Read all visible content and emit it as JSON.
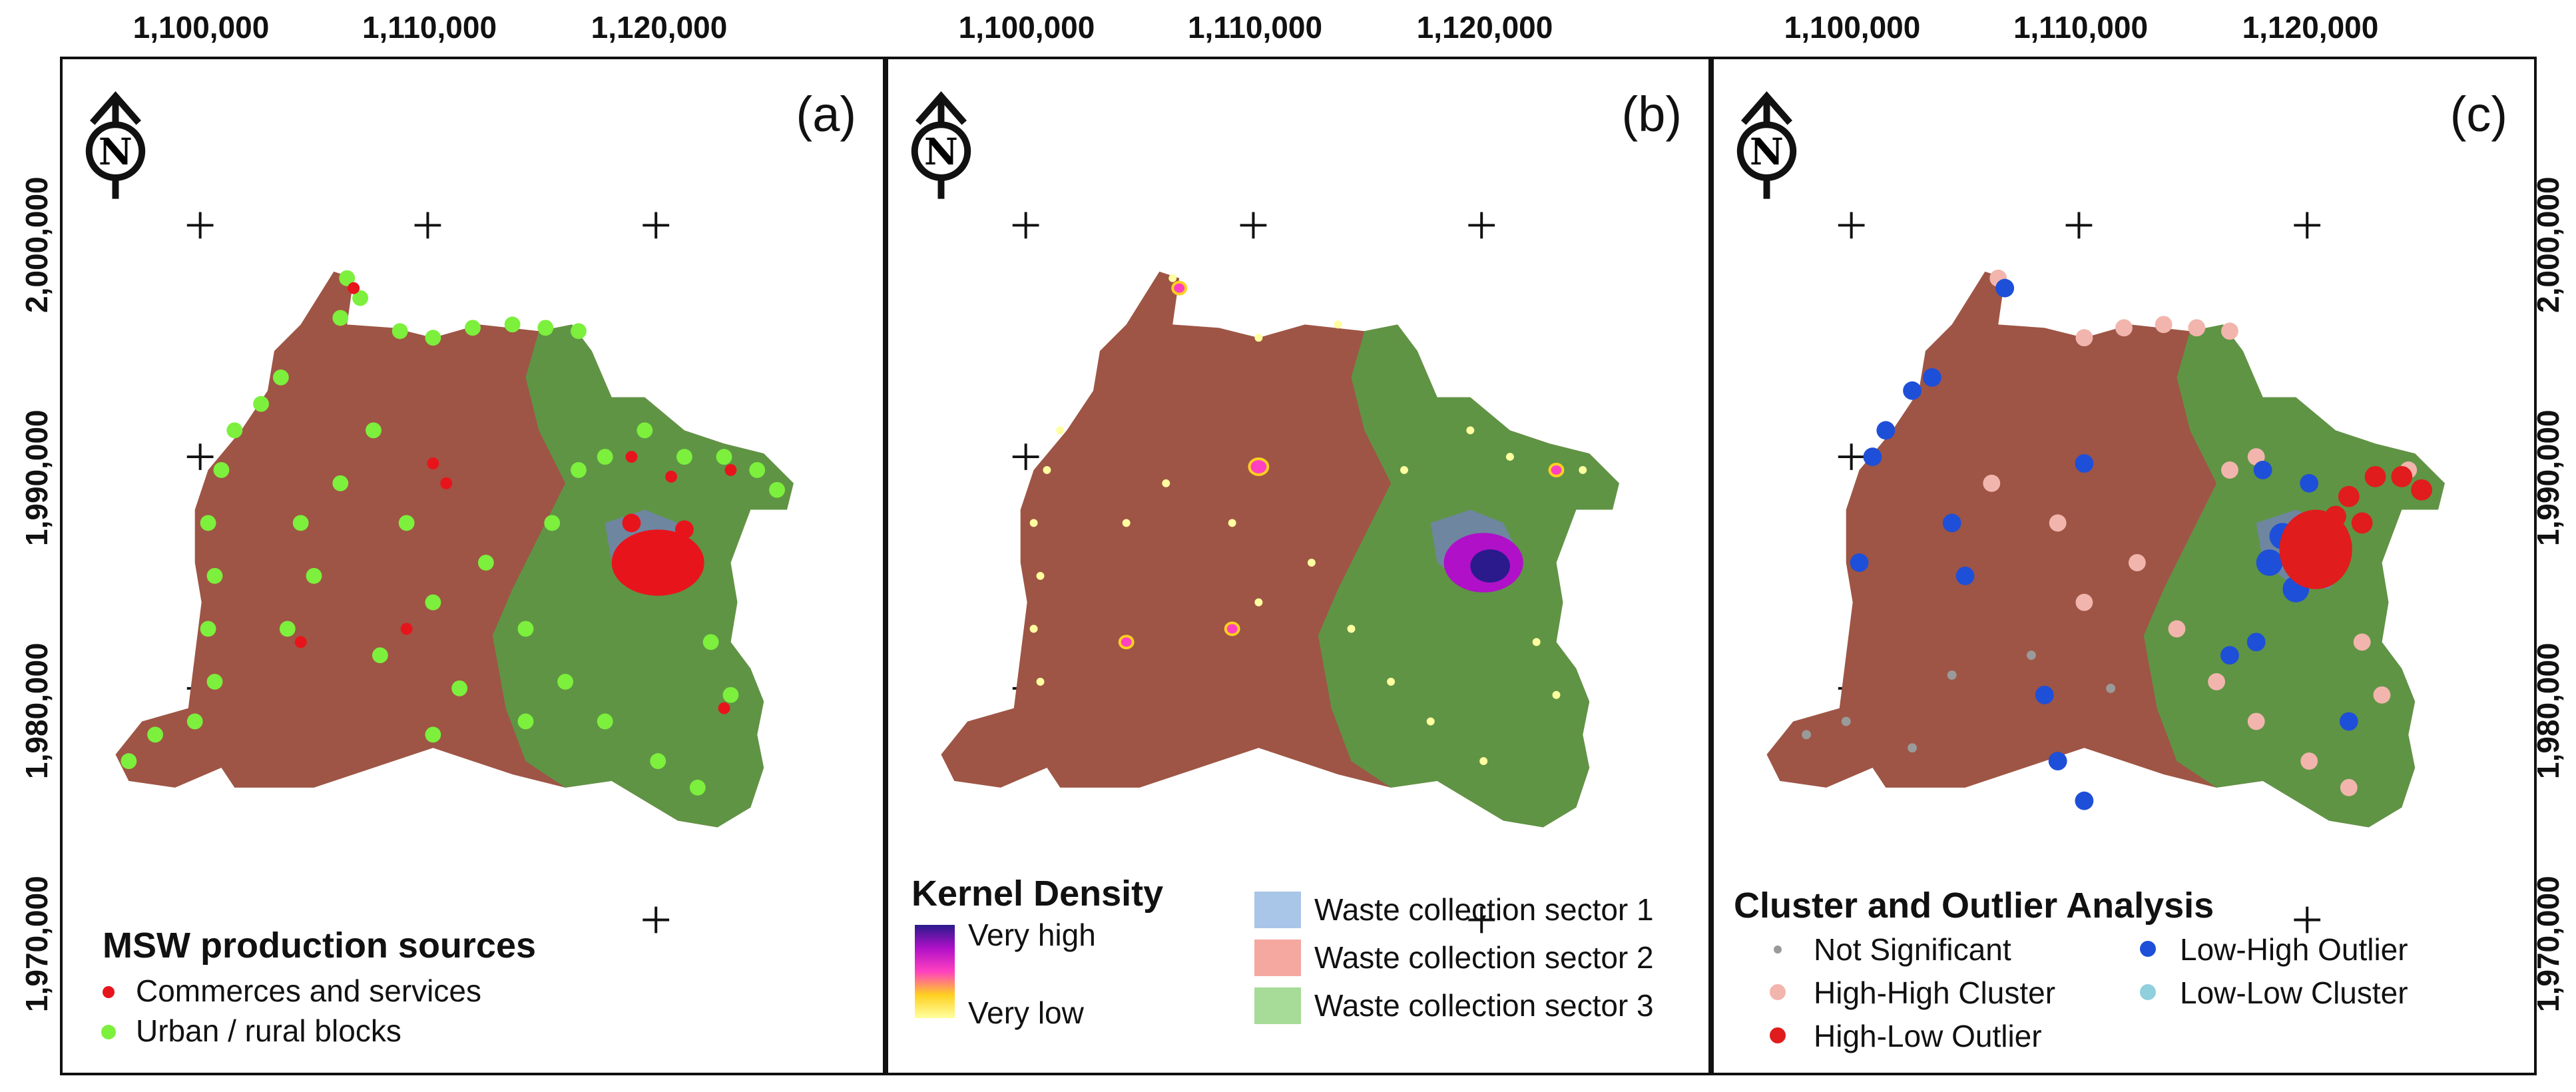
{
  "axes": {
    "x_ticks": [
      "1,100,000",
      "1,110,000",
      "1,120,000"
    ],
    "y_ticks": [
      "2,000,000",
      "1,990,000",
      "1,980,000",
      "1,970,000"
    ]
  },
  "north_arrow": {
    "letter": "N"
  },
  "panels": [
    {
      "label": "(a)",
      "legend": {
        "title": "MSW production sources",
        "items": [
          {
            "label": "Commerces and services",
            "color": "#e8141b"
          },
          {
            "label": "Urban / rural blocks",
            "color": "#7cf03c"
          }
        ]
      }
    },
    {
      "label": "(b)",
      "legend": {
        "title": "Kernel Density",
        "high": "Very high",
        "low": "Very low",
        "ramp": [
          "#2a1a8c",
          "#b010c8",
          "#ff40c0",
          "#ffd020",
          "#ffffa0"
        ],
        "sectors": [
          {
            "label": "Waste collection sector 1",
            "color": "#a9c6e8"
          },
          {
            "label": "Waste collection sector 2",
            "color": "#f5a8a0"
          },
          {
            "label": "Waste collection sector 3",
            "color": "#a6dc98"
          }
        ]
      }
    },
    {
      "label": "(c)",
      "legend": {
        "title": "Cluster and Outlier Analysis",
        "items": [
          {
            "label": "Not Significant",
            "color": "#9a9a9a"
          },
          {
            "label": "High-High Cluster",
            "color": "#f2b5ad"
          },
          {
            "label": "High-Low Outlier",
            "color": "#e01c1c"
          },
          {
            "label": "Low-High Outlier",
            "color": "#1e4fd8"
          },
          {
            "label": "Low-Low Cluster",
            "color": "#8fd0dc"
          }
        ]
      }
    }
  ],
  "colors": {
    "sector_west": "#9e5545",
    "sector_east": "#5f9445",
    "urban_core": "#6e86a0"
  }
}
